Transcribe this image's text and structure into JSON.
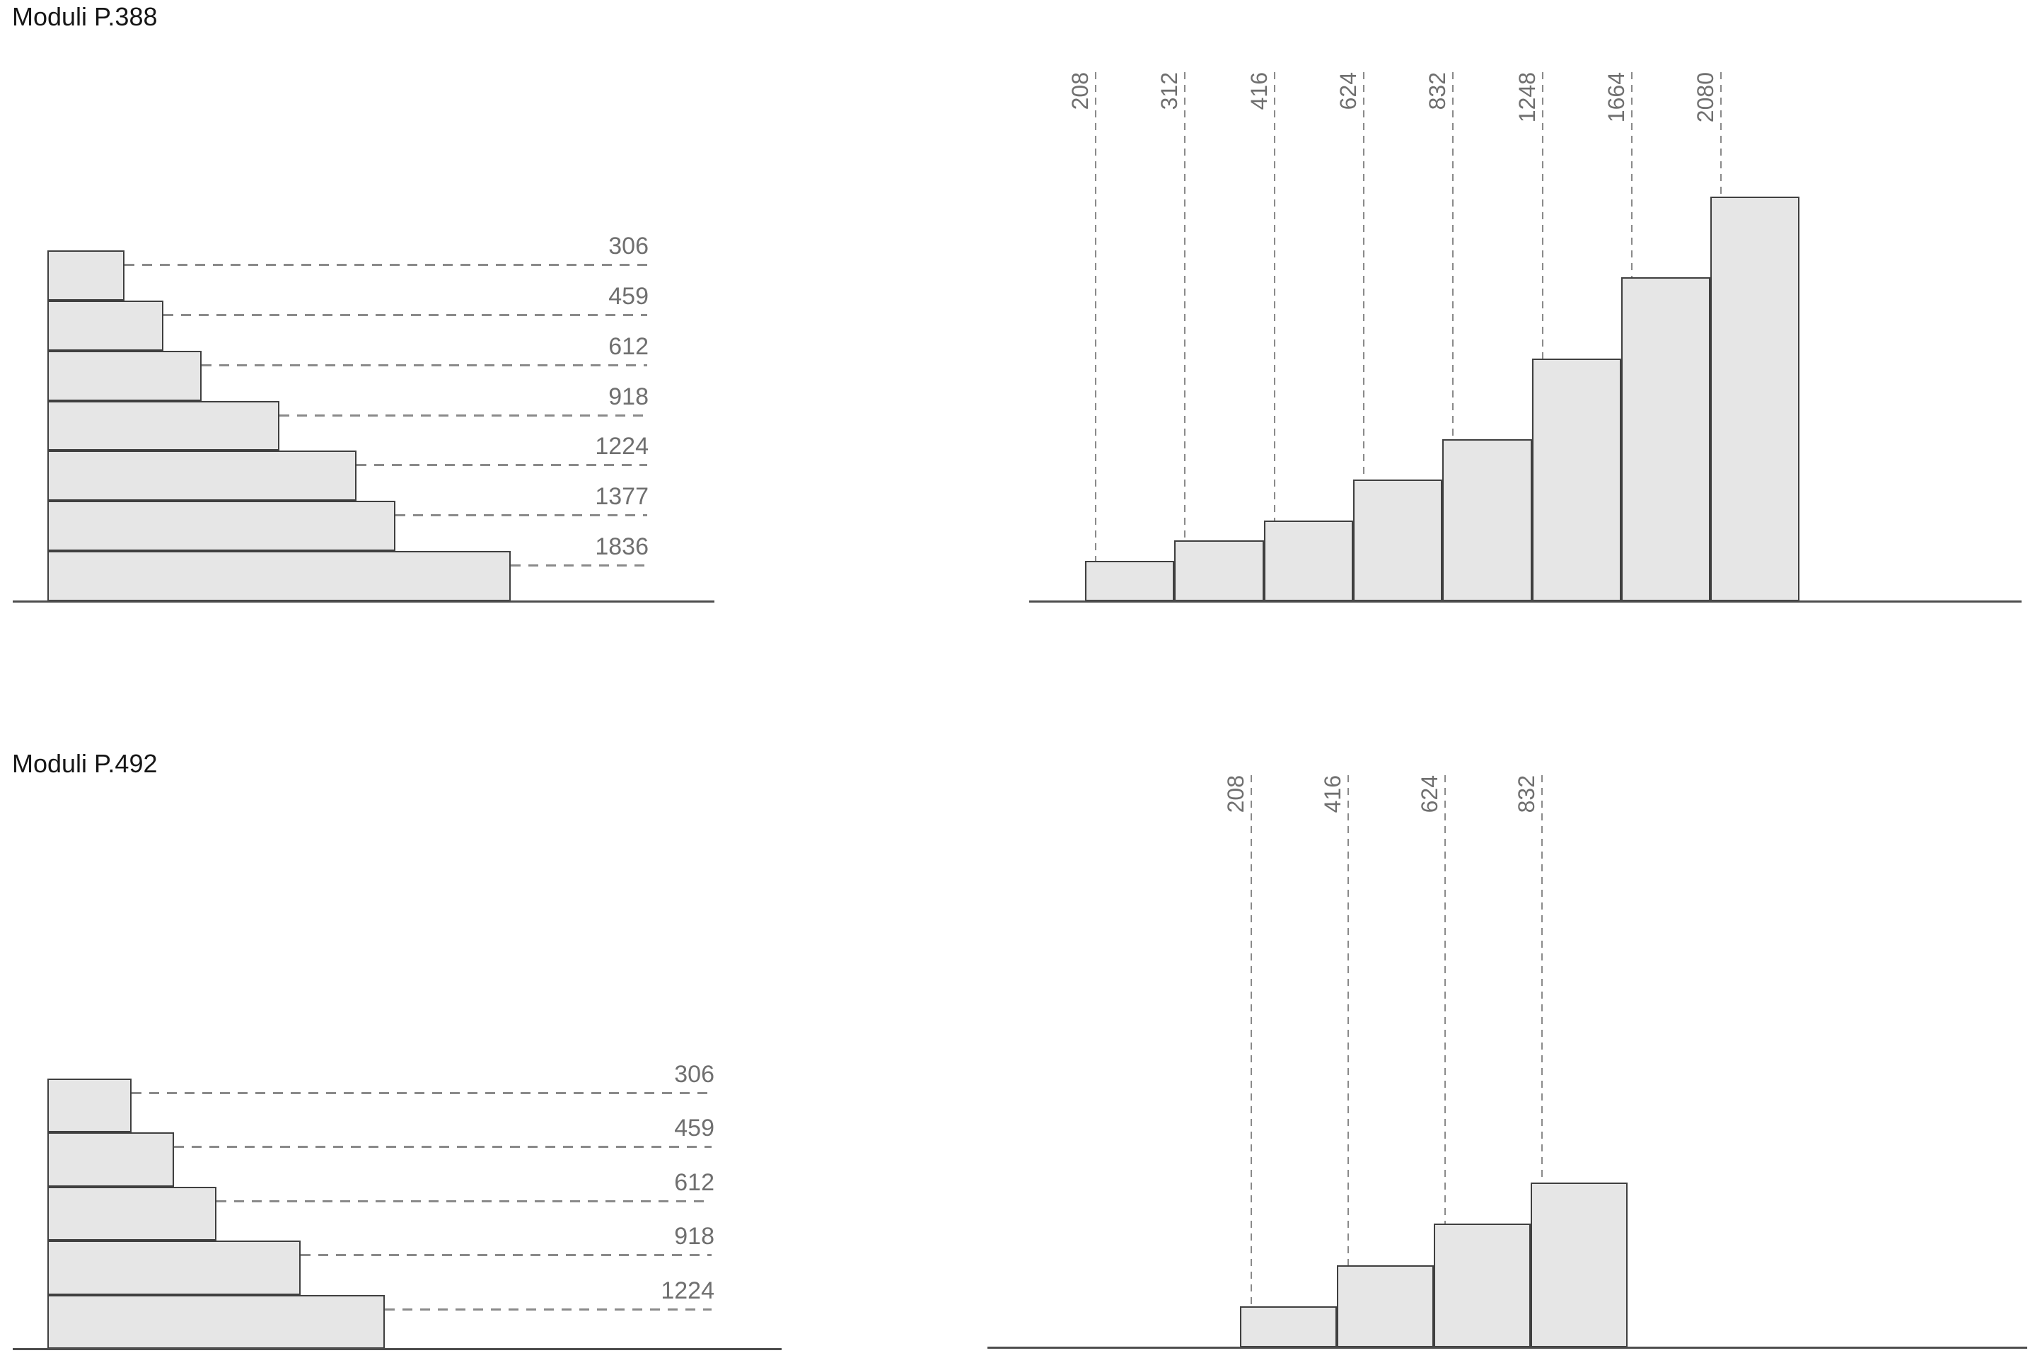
{
  "page": {
    "background": "#ffffff"
  },
  "sections": [
    {
      "title": "Moduli P.388"
    },
    {
      "title": "Moduli P.492"
    }
  ],
  "chart_data": [
    {
      "id": "p388-left",
      "section": "Moduli P.388",
      "type": "bar",
      "orientation": "horizontal",
      "values": [
        306,
        459,
        612,
        918,
        1224,
        1377,
        1836
      ],
      "labels": [
        "306",
        "459",
        "612",
        "918",
        "1224",
        "1377",
        "1836"
      ],
      "title": "",
      "xlabel": "",
      "ylabel": "",
      "axis_ticks": "none",
      "grid": false,
      "legend_position": "none",
      "leader_lines": "dashed",
      "baseline_shown": true
    },
    {
      "id": "p388-right",
      "section": "Moduli P.388",
      "type": "bar",
      "orientation": "vertical",
      "values": [
        208,
        312,
        416,
        624,
        832,
        1248,
        1664,
        2080
      ],
      "labels": [
        "208",
        "312",
        "416",
        "624",
        "832",
        "1248",
        "1664",
        "2080"
      ],
      "title": "",
      "xlabel": "",
      "ylabel": "",
      "axis_ticks": "none",
      "grid": false,
      "legend_position": "none",
      "leader_lines": "dashed",
      "label_rotation_deg": -90,
      "baseline_shown": true
    },
    {
      "id": "p492-left",
      "section": "Moduli P.492",
      "type": "bar",
      "orientation": "horizontal",
      "values": [
        306,
        459,
        612,
        918,
        1224
      ],
      "labels": [
        "306",
        "459",
        "612",
        "918",
        "1224"
      ],
      "title": "",
      "xlabel": "",
      "ylabel": "",
      "axis_ticks": "none",
      "grid": false,
      "legend_position": "none",
      "leader_lines": "dashed",
      "baseline_shown": true
    },
    {
      "id": "p492-right",
      "section": "Moduli P.492",
      "type": "bar",
      "orientation": "vertical",
      "values": [
        208,
        416,
        624,
        832
      ],
      "labels": [
        "208",
        "416",
        "624",
        "832"
      ],
      "title": "",
      "xlabel": "",
      "ylabel": "",
      "axis_ticks": "none",
      "grid": false,
      "legend_position": "none",
      "leader_lines": "dashed",
      "label_rotation_deg": -90,
      "baseline_shown": true
    }
  ],
  "colors": {
    "bar_fill": "#e6e6e6",
    "bar_stroke": "#3f3f3f",
    "baseline": "#4d4d4d",
    "leader_line": "#8a8a8a",
    "value_label": "#6f6f6f",
    "title": "#161616"
  }
}
